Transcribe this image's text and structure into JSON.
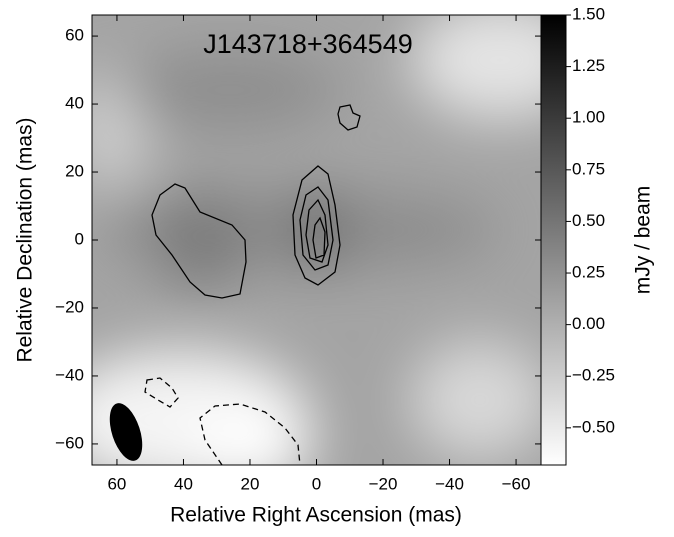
{
  "chart_data": {
    "type": "image",
    "title": "J143718+364549",
    "x_label": "Relative Right Ascension (mas)",
    "y_label": "Relative Declination (mas)",
    "colorbar_label": "mJy / beam",
    "xlim": [
      67.5,
      -67.5
    ],
    "xticks": [
      60,
      40,
      20,
      0,
      {
        "value": -20,
        "label": "−20"
      },
      {
        "value": -40,
        "label": "−40"
      },
      {
        "value": -60,
        "label": "−60"
      }
    ],
    "ylim": [
      -66.2,
      66.2
    ],
    "yticks": [
      {
        "value": -60,
        "label": "−60"
      },
      {
        "value": -40,
        "label": "−40"
      },
      {
        "value": -20,
        "label": "−20"
      },
      0,
      20,
      40,
      60
    ],
    "zlim": [
      -0.68,
      1.5
    ],
    "zticks": [
      {
        "value": -0.5,
        "label": "−0.50"
      },
      {
        "value": -0.25,
        "label": "−0.25"
      },
      {
        "value": 0,
        "label": "0.00"
      },
      {
        "value": 0.25,
        "label": "0.25"
      },
      {
        "value": 0.5,
        "label": "0.50"
      },
      {
        "value": 0.75,
        "label": "0.75"
      },
      {
        "value": 1.0,
        "label": "1.00"
      },
      {
        "value": 1.25,
        "label": "1.25"
      },
      {
        "value": 1.5,
        "label": "1.50"
      }
    ]
  }
}
